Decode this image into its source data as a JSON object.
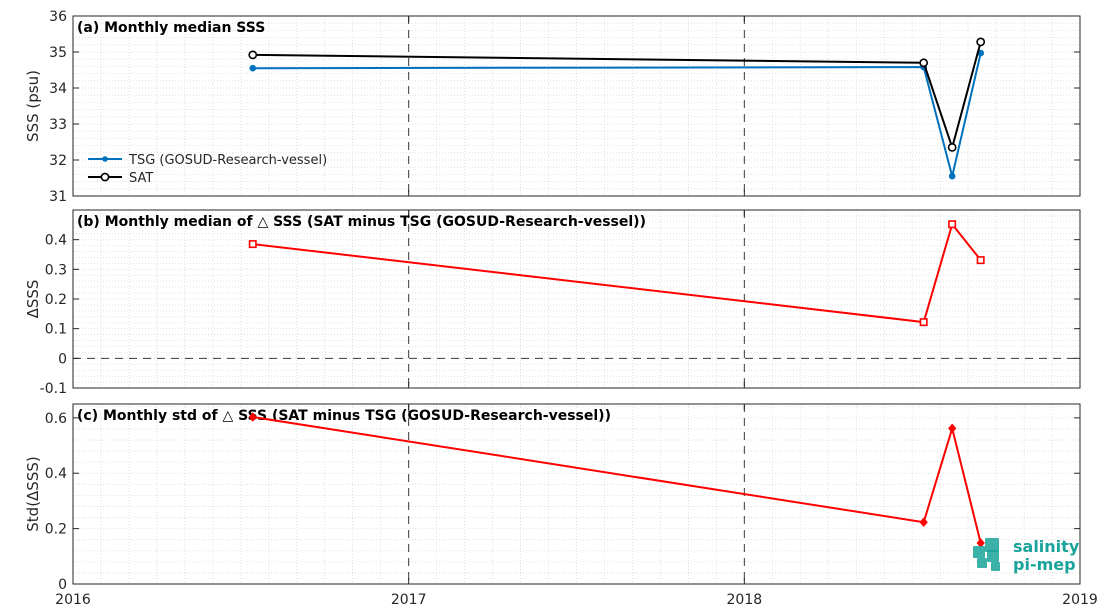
{
  "chart_data": [
    {
      "type": "line",
      "title": "(a) Monthly median SSS",
      "ylabel": "SSS (psu)",
      "xlabel": "",
      "xlim": [
        "2016-01-01",
        "2019-01-01"
      ],
      "ylim": [
        31,
        36
      ],
      "yticks": [
        31,
        32,
        33,
        34,
        35,
        36
      ],
      "ytick_labels": [
        "31",
        "32",
        "33",
        "34",
        "35",
        "36"
      ],
      "grid": "on (dashed major at year boundaries, dotted minor)",
      "legend_position": "bottom-left",
      "x": [
        "2016-07-15",
        "2018-07-15",
        "2018-08-15",
        "2018-09-15"
      ],
      "series": [
        {
          "name": "TSG (GOSUD-Research-vessel)",
          "color": "#0072bd",
          "marker": "dot",
          "values": [
            34.55,
            34.58,
            31.55,
            34.97
          ]
        },
        {
          "name": "SAT",
          "color": "#000000",
          "marker": "circle",
          "values": [
            34.92,
            34.7,
            32.35,
            35.28
          ]
        }
      ]
    },
    {
      "type": "line",
      "title": "(b) Monthly median of △ SSS (SAT minus TSG (GOSUD-Research-vessel))",
      "ylabel": "ΔSSS",
      "xlabel": "",
      "xlim": [
        "2016-01-01",
        "2019-01-01"
      ],
      "ylim": [
        -0.1,
        0.5
      ],
      "yticks": [
        -0.1,
        0,
        0.1,
        0.2,
        0.3,
        0.4
      ],
      "ytick_labels": [
        "-0.1",
        "0",
        "0.1",
        "0.2",
        "0.3",
        "0.4"
      ],
      "reference_line": 0,
      "x": [
        "2016-07-15",
        "2018-07-15",
        "2018-08-15",
        "2018-09-15"
      ],
      "series": [
        {
          "color": "#ff0000",
          "marker": "square",
          "values": [
            0.385,
            0.122,
            0.452,
            0.331
          ]
        }
      ]
    },
    {
      "type": "line",
      "title": "(c) Monthly std of △ SSS (SAT minus TSG (GOSUD-Research-vessel))",
      "ylabel": "Std(ΔSSS)",
      "xlabel": "",
      "xlim": [
        "2016-01-01",
        "2019-01-01"
      ],
      "ylim": [
        0,
        0.65
      ],
      "yticks": [
        0,
        0.2,
        0.4,
        0.6
      ],
      "ytick_labels": [
        "0",
        "0.2",
        "0.4",
        "0.6"
      ],
      "xticks": [
        "2016-01-01",
        "2017-01-01",
        "2018-01-01",
        "2019-01-01"
      ],
      "xtick_labels": [
        "2016",
        "2017",
        "2018",
        "2019"
      ],
      "x": [
        "2016-07-15",
        "2018-07-15",
        "2018-08-15",
        "2018-09-15"
      ],
      "series": [
        {
          "color": "#ff0000",
          "marker": "diamond",
          "values": [
            0.603,
            0.223,
            0.562,
            0.148
          ]
        }
      ]
    }
  ],
  "logo": {
    "line1": "salinity",
    "line2": "pi-mep",
    "color": "#1aa39a"
  }
}
